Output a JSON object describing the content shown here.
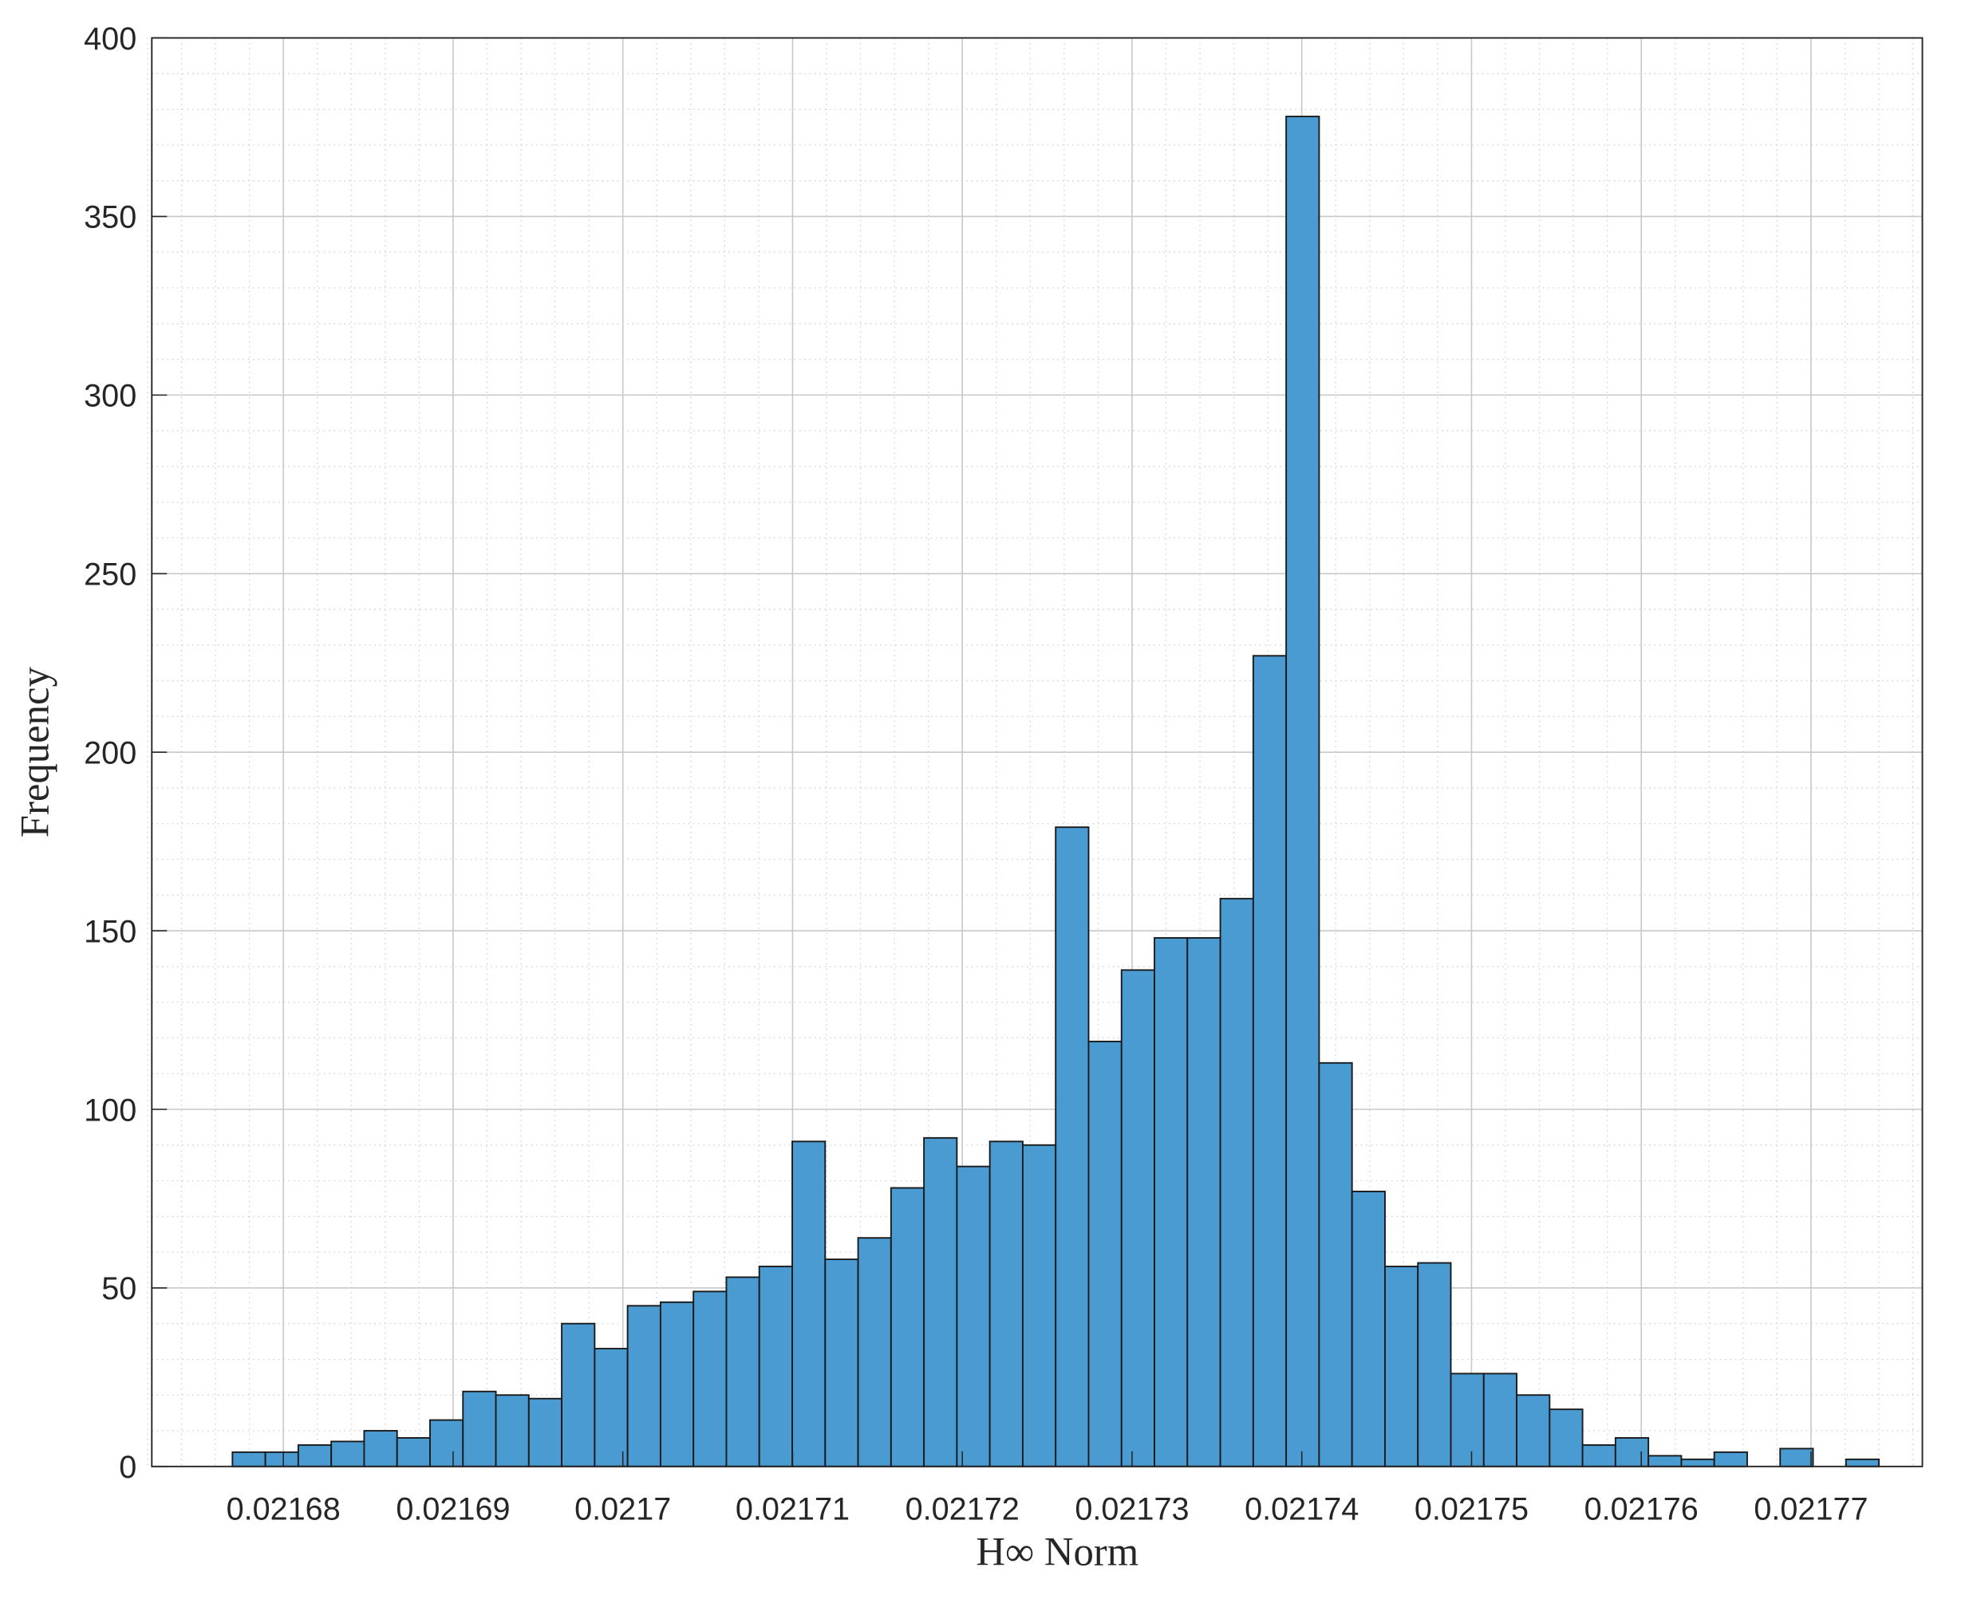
{
  "chart_data": {
    "type": "histogram",
    "xlabel": "H∞ Norm",
    "ylabel": "Frequency",
    "bins": [
      0.021677,
      0.02167894,
      0.02168088,
      0.02168282,
      0.02168476,
      0.0216867,
      0.02168864,
      0.02169058,
      0.02169252,
      0.02169446,
      0.0216964,
      0.02169834,
      0.02170028,
      0.02170222,
      0.02170416,
      0.0217061,
      0.02170804,
      0.02170998,
      0.02171192,
      0.02171386,
      0.0217158,
      0.02171774,
      0.02171968,
      0.02172162,
      0.02172356,
      0.0217255,
      0.02172744,
      0.02172938,
      0.02173132,
      0.02173326,
      0.0217352,
      0.02173714,
      0.02173908,
      0.02174102,
      0.02174296,
      0.0217449,
      0.02174684,
      0.02174878,
      0.02175072,
      0.02175266,
      0.0217546,
      0.02175654,
      0.02175848,
      0.02176042,
      0.02176236,
      0.0217643,
      0.02176624,
      0.02176818,
      0.02177012,
      0.02177206,
      0.021774
    ],
    "values": [
      4,
      4,
      6,
      7,
      10,
      8,
      13,
      21,
      20,
      19,
      40,
      33,
      45,
      46,
      49,
      53,
      56,
      91,
      58,
      64,
      78,
      92,
      84,
      91,
      90,
      179,
      119,
      139,
      148,
      148,
      159,
      227,
      378,
      113,
      77,
      56,
      57,
      26,
      26,
      20,
      16,
      6,
      8,
      3,
      2,
      4,
      0,
      5,
      0,
      2
    ],
    "color": "#4b9bd3",
    "xlim": [
      0.02167225,
      0.02177656
    ],
    "xticks": [
      0.02168,
      0.02169,
      0.0217,
      0.02171,
      0.02172,
      0.02173,
      0.02174,
      0.02175,
      0.02176,
      0.02177
    ],
    "ylim": [
      0,
      400
    ],
    "yticks": [
      0,
      50,
      100,
      150,
      200,
      250,
      300,
      350,
      400
    ],
    "grid": true,
    "minor_grid": true
  }
}
